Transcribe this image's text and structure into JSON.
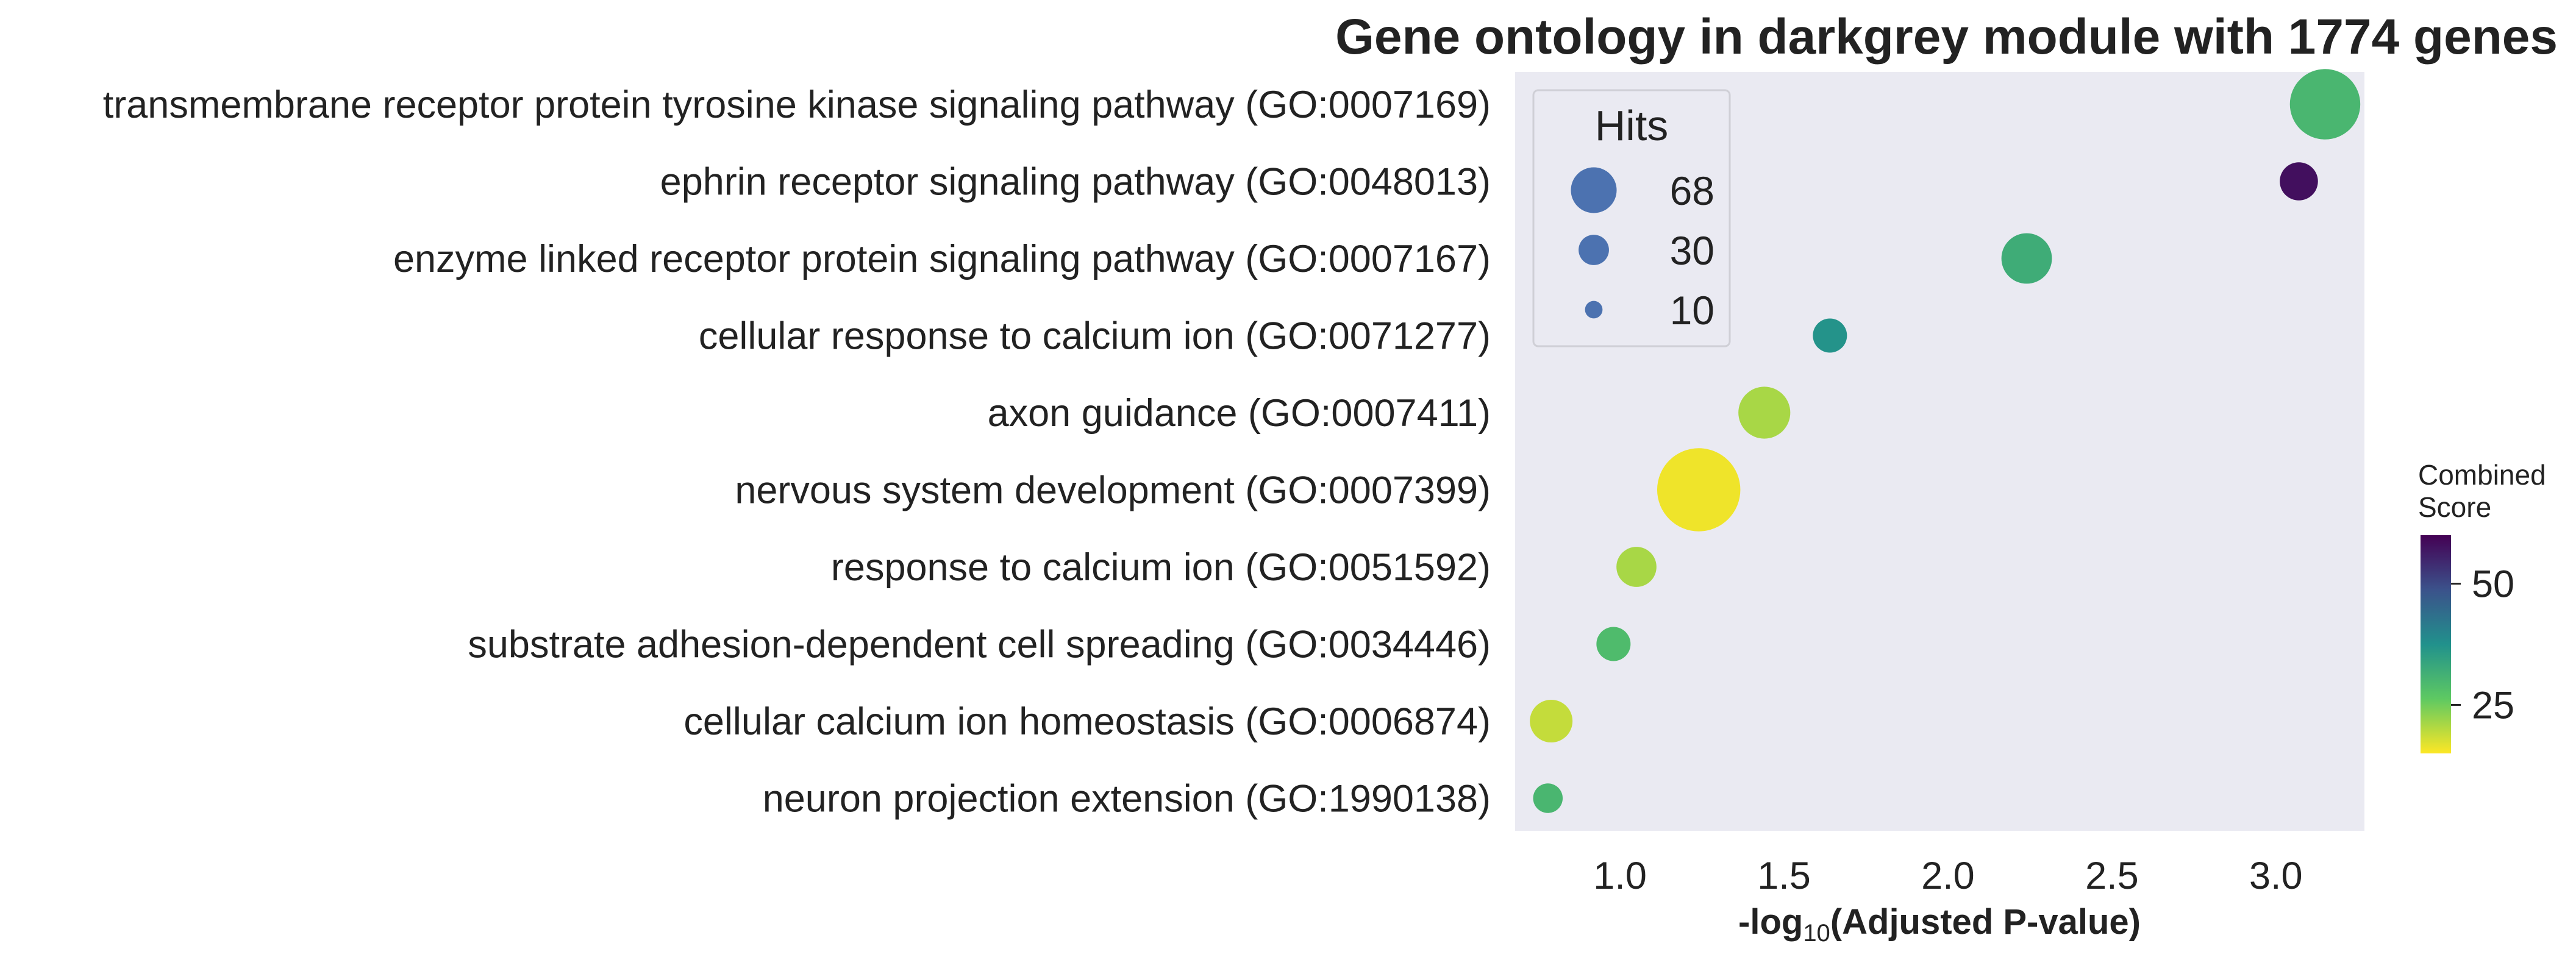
{
  "chart_data": {
    "type": "scatter",
    "title": "Gene ontology in darkgrey module with 1774 genes",
    "xlabel_main": "-log",
    "xlabel_sub": "10",
    "xlabel_tail": "(Adjusted P-value)",
    "xlim": [
      0.68,
      3.27
    ],
    "xticks": [
      1.0,
      1.5,
      2.0,
      2.5,
      3.0
    ],
    "xtick_labels": [
      "1.0",
      "1.5",
      "2.0",
      "2.5",
      "3.0"
    ],
    "grid": false,
    "background": "#eaeaf2",
    "points": [
      {
        "term": "transmembrane receptor protein tyrosine kinase signaling pathway (GO:0007169)",
        "x": 3.15,
        "hits": 68,
        "score": 30
      },
      {
        "term": "ephrin receptor signaling pathway (GO:0048013)",
        "x": 3.07,
        "hits": 20,
        "score": 58
      },
      {
        "term": "enzyme linked receptor protein signaling pathway (GO:0007167)",
        "x": 2.24,
        "hits": 35,
        "score": 32
      },
      {
        "term": "cellular response to calcium ion (GO:0071277)",
        "x": 1.64,
        "hits": 16,
        "score": 37
      },
      {
        "term": "axon guidance (GO:0007411)",
        "x": 1.44,
        "hits": 37,
        "score": 21
      },
      {
        "term": "nervous system development (GO:0007399)",
        "x": 1.24,
        "hits": 95,
        "score": 16
      },
      {
        "term": "response to calcium ion (GO:0051592)",
        "x": 1.05,
        "hits": 22,
        "score": 21
      },
      {
        "term": "substrate adhesion-dependent cell spreading (GO:0034446)",
        "x": 0.98,
        "hits": 16,
        "score": 29
      },
      {
        "term": "cellular calcium ion homeostasis (GO:0006874)",
        "x": 0.79,
        "hits": 25,
        "score": 19
      },
      {
        "term": "neuron projection extension (GO:1990138)",
        "x": 0.78,
        "hits": 12,
        "score": 30
      }
    ],
    "size_legend": {
      "title": "Hits",
      "placement": "upper-left",
      "entries": [
        {
          "label": "68",
          "hits": 68
        },
        {
          "label": "30",
          "hits": 30
        },
        {
          "label": "10",
          "hits": 10
        }
      ],
      "color": "#4c72b0"
    },
    "colorbar": {
      "title_line1": "Combined",
      "title_line2": "Score",
      "range": [
        15,
        60
      ],
      "ticks": [
        25,
        50
      ],
      "tick_labels": [
        "25",
        "50"
      ],
      "colormap": "viridis (reversed)"
    }
  }
}
